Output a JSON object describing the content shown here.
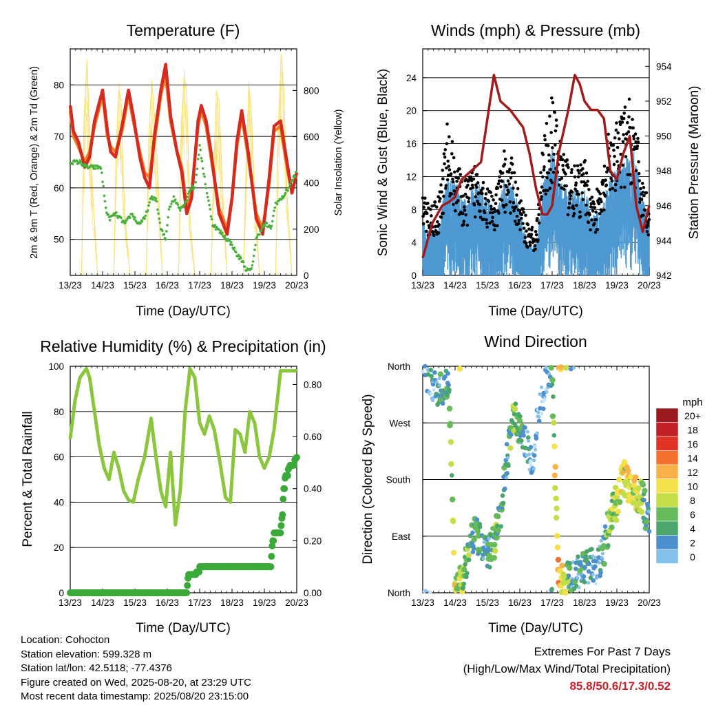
{
  "panels": {
    "temperature": {
      "title": "Temperature (F)",
      "xlabel": "Time (Day/UTC)",
      "ylabel_left": "2m & 9m T (Red, Orange) & 2m Td (Green)",
      "ylabel_right": "Solar Insolation (Yellow)"
    },
    "winds": {
      "title": "Winds (mph) & Pressure (mb)",
      "xlabel": "Time (Day/UTC)",
      "ylabel_left": "Sonic Wind & Gust (Blue, Black)",
      "ylabel_right": "Station Pressure (Maroon)"
    },
    "humidity": {
      "title": "Relative Humidity (%) & Precipitation (in)",
      "xlabel": "Time (Day/UTC)",
      "ylabel_left": "Percent & Total Rainfall",
      "ylabel_right": ""
    },
    "direction": {
      "title": "Wind Direction",
      "xlabel": "Time (Day/UTC)",
      "ylabel_left": "Direction (Colored By Speed)",
      "legend_title": "mph",
      "legend_labels": [
        "20+",
        "18",
        "16",
        "14",
        "12",
        "10",
        "8",
        "6",
        "4",
        "2",
        "0"
      ]
    }
  },
  "info": {
    "location": "Location: Cohocton",
    "elevation": "Station elevation: 599.328 m",
    "latlon": "Station lat/lon: 42.5118; -77.4376",
    "created": "Figure created on Wed, 2025-08-20, at 23:29 UTC",
    "recent": "Most recent data timestamp: 2025/08/20 23:15:00"
  },
  "extremes": {
    "heading": "Extremes For Past 7 Days",
    "subheading": "(High/Low/Max Wind/Total Precipitation)",
    "values": "85.8/50.6/17.3/0.52"
  },
  "colors": {
    "temp_2m": "#d42a20",
    "temp_9m": "#f07e26",
    "dewpoint": "#4aaf3c",
    "solar": "#f7e27a",
    "wind": "#4f99d2",
    "gust": "#000000",
    "pressure": "#a31a1a",
    "rh": "#8cc63f",
    "precip": "#3aa93a",
    "speed_scale": [
      "#c4e6f7",
      "#86c1ea",
      "#4d8fcc",
      "#4aa66a",
      "#66ba5a",
      "#c4de4a",
      "#f4e04a",
      "#f8b248",
      "#f2702f",
      "#df3425",
      "#c12027",
      "#9a1a1f"
    ]
  },
  "chart_data": [
    {
      "type": "line",
      "title": "Temperature (F)",
      "xlabel": "Time (Day/UTC)",
      "ylabel": "2m & 9m T (Red, Orange) & 2m Td (Green)",
      "y2label": "Solar Insolation (Yellow)",
      "x_ticks": [
        "13/23",
        "14/23",
        "15/23",
        "16/23",
        "17/23",
        "18/23",
        "19/23",
        "20/23"
      ],
      "xlim": [
        0,
        7
      ],
      "ylim": [
        43,
        87
      ],
      "y_ticks": [
        50,
        60,
        70,
        80
      ],
      "y2lim": [
        0,
        980
      ],
      "y2_ticks": [
        0,
        200,
        400,
        600,
        800
      ],
      "series": [
        {
          "name": "2m T",
          "axis": "left",
          "x": [
            0,
            0.1,
            0.25,
            0.45,
            0.6,
            0.75,
            1.0,
            1.15,
            1.25,
            1.4,
            1.6,
            1.8,
            1.95,
            2.15,
            2.3,
            2.45,
            2.6,
            2.8,
            2.95,
            3.1,
            3.3,
            3.45,
            3.6,
            3.75,
            3.95,
            4.05,
            4.2,
            4.35,
            4.6,
            4.85,
            5.0,
            5.15,
            5.3,
            5.5,
            5.75,
            5.95,
            6.15,
            6.3,
            6.5,
            6.7,
            6.85,
            7.0
          ],
          "y": [
            76,
            71,
            69,
            64,
            66,
            73,
            79,
            71,
            67,
            66,
            72,
            79,
            74,
            66,
            62,
            60,
            70,
            79,
            84,
            74,
            67,
            63,
            55,
            58,
            73,
            76,
            73,
            67,
            55,
            51,
            58,
            69,
            75,
            67,
            54,
            51,
            62,
            72,
            73,
            65,
            59,
            63
          ]
        },
        {
          "name": "9m T",
          "axis": "left",
          "x": [
            0,
            0.1,
            0.25,
            0.45,
            0.6,
            0.75,
            1.0,
            1.15,
            1.25,
            1.4,
            1.6,
            1.8,
            1.95,
            2.15,
            2.3,
            2.45,
            2.6,
            2.8,
            2.95,
            3.1,
            3.3,
            3.45,
            3.6,
            3.75,
            3.95,
            4.05,
            4.2,
            4.35,
            4.6,
            4.85,
            5.0,
            5.15,
            5.3,
            5.5,
            5.75,
            5.95,
            6.15,
            6.3,
            6.5,
            6.7,
            6.85,
            7.0
          ],
          "y": [
            75,
            70,
            68,
            65,
            67,
            72,
            78,
            70,
            68,
            67,
            71,
            78,
            73,
            67,
            63,
            62,
            69,
            78,
            82,
            73,
            67,
            64,
            56,
            59,
            72,
            75,
            72,
            66,
            56,
            52,
            58,
            68,
            74,
            66,
            55,
            52,
            61,
            71,
            72,
            64,
            59,
            63
          ]
        },
        {
          "name": "2m Td",
          "axis": "left",
          "x": [
            0,
            0.3,
            0.5,
            0.65,
            0.95,
            1.1,
            1.2,
            1.4,
            1.7,
            1.9,
            2.1,
            2.3,
            2.5,
            2.65,
            2.8,
            2.95,
            3.05,
            3.2,
            3.4,
            3.55,
            3.65,
            3.75,
            3.85,
            4.0,
            4.2,
            4.4,
            4.7,
            4.85,
            5.0,
            5.15,
            5.3,
            5.45,
            5.6,
            5.75,
            5.9,
            6.05,
            6.2,
            6.35,
            6.55,
            6.75,
            6.9,
            7.0
          ],
          "y": [
            65,
            65,
            64,
            64,
            64,
            56,
            54,
            55,
            53,
            55,
            53,
            54,
            58,
            58,
            52,
            50,
            56,
            58,
            56,
            57,
            59,
            60,
            60,
            68,
            60,
            53,
            51,
            50,
            49,
            47,
            46,
            44,
            44,
            50,
            52,
            53,
            52,
            57,
            58,
            60,
            62,
            63
          ]
        },
        {
          "name": "Solar",
          "axis": "right",
          "x": [
            0,
            0.35,
            0.43,
            0.52,
            0.6,
            0.7,
            0.85,
            1.35,
            1.42,
            1.5,
            1.57,
            1.67,
            1.85,
            2.35,
            2.43,
            2.52,
            2.6,
            2.7,
            2.85,
            3.35,
            3.43,
            3.52,
            3.6,
            3.7,
            3.85,
            4.35,
            4.43,
            4.52,
            4.6,
            4.7,
            4.85,
            5.35,
            5.43,
            5.52,
            5.6,
            5.7,
            5.85,
            6.35,
            6.42,
            6.52,
            6.6,
            6.7,
            6.85,
            7.0
          ],
          "y": [
            0,
            0,
            700,
            930,
            620,
            350,
            0,
            0,
            550,
            800,
            760,
            300,
            0,
            0,
            600,
            840,
            700,
            450,
            0,
            0,
            650,
            860,
            800,
            250,
            0,
            0,
            450,
            800,
            750,
            400,
            0,
            0,
            450,
            820,
            700,
            350,
            0,
            0,
            600,
            960,
            800,
            350,
            0,
            0
          ]
        }
      ]
    },
    {
      "type": "scatter",
      "title": "Winds (mph) & Pressure (mb)",
      "xlabel": "Time (Day/UTC)",
      "ylabel": "Sonic Wind & Gust (Blue, Black)",
      "y2label": "Station Pressure (Maroon)",
      "x_ticks": [
        "13/23",
        "14/23",
        "15/23",
        "16/23",
        "17/23",
        "18/23",
        "19/23",
        "20/23"
      ],
      "xlim": [
        0,
        7
      ],
      "ylim": [
        0,
        27.5
      ],
      "y_ticks": [
        0,
        4,
        8,
        12,
        16,
        20,
        24
      ],
      "y2lim": [
        942,
        955
      ],
      "y2_ticks": [
        942,
        944,
        946,
        948,
        950,
        952,
        954
      ],
      "series": [
        {
          "name": "Gust envelope",
          "axis": "left",
          "x": [
            0,
            0.25,
            0.5,
            0.75,
            1.0,
            1.25,
            1.5,
            1.75,
            2.0,
            2.25,
            2.5,
            2.75,
            3.0,
            3.25,
            3.5,
            3.75,
            4.0,
            4.25,
            4.5,
            4.75,
            5.0,
            5.25,
            5.5,
            5.75,
            6.0,
            6.25,
            6.5,
            6.75,
            7.0
          ],
          "y": [
            9,
            8,
            9,
            17,
            14,
            10,
            12,
            13,
            10,
            9,
            14,
            13,
            9,
            6,
            5,
            16,
            20,
            16,
            13,
            12,
            13,
            9,
            10,
            16,
            17,
            19,
            20,
            12,
            8
          ]
        },
        {
          "name": "Wind envelope",
          "axis": "left",
          "x": [
            0,
            0.25,
            0.5,
            0.75,
            1.0,
            1.25,
            1.5,
            1.75,
            2.0,
            2.25,
            2.5,
            2.75,
            3.0,
            3.25,
            3.5,
            3.75,
            4.0,
            4.25,
            4.5,
            4.75,
            5.0,
            5.25,
            5.5,
            5.75,
            6.0,
            6.25,
            6.5,
            6.75,
            7.0
          ],
          "y": [
            5,
            4,
            5,
            9,
            9,
            7,
            8,
            9,
            7,
            6,
            9,
            9,
            6,
            3,
            3,
            9,
            12,
            9,
            8,
            8,
            8,
            6,
            6,
            9,
            10,
            11,
            12,
            8,
            5
          ]
        },
        {
          "name": "Station Pressure",
          "axis": "right",
          "x": [
            0,
            0.3,
            0.6,
            0.8,
            1.0,
            1.2,
            1.5,
            1.8,
            2.0,
            2.2,
            2.4,
            2.7,
            2.9,
            3.1,
            3.3,
            3.5,
            3.7,
            3.85,
            4.0,
            4.2,
            4.5,
            4.7,
            4.85,
            5.0,
            5.2,
            5.4,
            5.6,
            5.8,
            6.0,
            6.2,
            6.4,
            6.6,
            6.8,
            7.0
          ],
          "y": [
            943,
            945,
            946,
            946.2,
            946.5,
            947.5,
            948,
            948.5,
            951,
            953.5,
            952,
            951.5,
            951,
            950.5,
            949,
            947,
            945.5,
            945.5,
            946,
            949,
            951.5,
            953.5,
            953,
            952,
            951.5,
            951.5,
            951,
            948,
            947.5,
            949,
            950,
            946,
            944.5,
            946
          ]
        }
      ]
    },
    {
      "type": "line",
      "title": "Relative Humidity (%) & Precipitation (in)",
      "xlabel": "Time (Day/UTC)",
      "ylabel": "Percent & Total Rainfall",
      "x_ticks": [
        "13/23",
        "14/23",
        "15/23",
        "16/23",
        "17/23",
        "18/23",
        "19/23",
        "20/23"
      ],
      "xlim": [
        0,
        7
      ],
      "ylim": [
        0,
        100
      ],
      "y_ticks": [
        0,
        20,
        40,
        60,
        80,
        100
      ],
      "y2lim": [
        0,
        0.87
      ],
      "y2_ticks": [
        0.0,
        0.2,
        0.4,
        0.6,
        0.8
      ],
      "y2_tick_labels": [
        "0.00",
        "0.20",
        "0.40",
        "0.60",
        "0.80"
      ],
      "series": [
        {
          "name": "RH",
          "axis": "left",
          "x": [
            0,
            0.15,
            0.3,
            0.5,
            0.6,
            0.75,
            0.9,
            1.05,
            1.2,
            1.35,
            1.5,
            1.65,
            1.8,
            1.95,
            2.1,
            2.3,
            2.5,
            2.65,
            2.8,
            2.95,
            3.1,
            3.25,
            3.4,
            3.55,
            3.7,
            3.85,
            4.0,
            4.15,
            4.3,
            4.45,
            4.6,
            4.8,
            4.95,
            5.1,
            5.25,
            5.4,
            5.55,
            5.7,
            5.85,
            6.0,
            6.15,
            6.3,
            6.5,
            6.7,
            6.9,
            7.0
          ],
          "y": [
            68,
            85,
            95,
            99,
            95,
            80,
            65,
            55,
            50,
            62,
            55,
            45,
            41,
            40,
            50,
            60,
            77,
            60,
            45,
            38,
            62,
            30,
            45,
            80,
            99,
            95,
            75,
            70,
            78,
            72,
            60,
            42,
            40,
            72,
            70,
            62,
            80,
            75,
            60,
            55,
            60,
            72,
            98,
            98,
            98,
            98
          ]
        },
        {
          "name": "Total Rainfall",
          "axis": "right",
          "x": [
            0,
            3.6,
            3.65,
            3.75,
            3.9,
            4.0,
            4.2,
            4.5,
            5.0,
            5.5,
            6.0,
            6.2,
            6.25,
            6.3,
            6.5,
            6.55,
            6.6,
            6.65,
            6.8,
            7.0
          ],
          "y": [
            0.0,
            0.0,
            0.07,
            0.07,
            0.08,
            0.1,
            0.1,
            0.1,
            0.1,
            0.1,
            0.1,
            0.1,
            0.2,
            0.23,
            0.23,
            0.3,
            0.4,
            0.45,
            0.49,
            0.52
          ]
        }
      ]
    },
    {
      "type": "scatter",
      "title": "Wind Direction",
      "xlabel": "Time (Day/UTC)",
      "ylabel": "Direction (Colored By Speed)",
      "x_ticks": [
        "13/23",
        "14/23",
        "15/23",
        "16/23",
        "17/23",
        "18/23",
        "19/23",
        "20/23"
      ],
      "y_ticks": [
        "North",
        "East",
        "South",
        "West",
        "North"
      ],
      "xlim": [
        0,
        7
      ],
      "ylim": [
        0,
        360
      ],
      "legend_title": "mph",
      "legend_labels": [
        "20+",
        "18",
        "16",
        "14",
        "12",
        "10",
        "8",
        "6",
        "4",
        "2",
        "0"
      ],
      "legend_position": "right",
      "series": [
        {
          "name": "Direction track",
          "x": [
            0.0,
            0.2,
            0.4,
            0.6,
            0.8,
            1.0,
            1.2,
            1.4,
            1.6,
            1.8,
            2.0,
            2.2,
            2.4,
            2.6,
            2.8,
            3.0,
            3.2,
            3.4,
            3.6,
            3.8,
            4.0,
            4.2,
            4.4,
            4.6,
            4.8,
            5.0,
            5.2,
            5.4,
            5.6,
            5.8,
            6.0,
            6.2,
            6.4,
            6.6,
            6.8,
            7.0
          ],
          "y": [
            355,
            340,
            320,
            320,
            340,
            5,
            20,
            60,
            100,
            80,
            60,
            80,
            120,
            210,
            285,
            260,
            240,
            200,
            300,
            330,
            340,
            10,
            25,
            20,
            30,
            40,
            45,
            40,
            70,
            120,
            145,
            185,
            165,
            160,
            150,
            105
          ]
        },
        {
          "name": "Speed along track",
          "x": [
            0.0,
            0.2,
            0.4,
            0.6,
            0.8,
            1.0,
            1.2,
            1.4,
            1.6,
            1.8,
            2.0,
            2.2,
            2.4,
            2.6,
            2.8,
            3.0,
            3.2,
            3.4,
            3.6,
            3.8,
            4.0,
            4.2,
            4.4,
            4.6,
            4.8,
            5.0,
            5.2,
            5.4,
            5.6,
            5.8,
            6.0,
            6.2,
            6.4,
            6.6,
            6.8,
            7.0
          ],
          "y": [
            3,
            4,
            5,
            6,
            8,
            12,
            11,
            8,
            7,
            6,
            6,
            8,
            7,
            5,
            9,
            7,
            4,
            3,
            3,
            2,
            8,
            16,
            10,
            6,
            5,
            6,
            5,
            4,
            6,
            9,
            11,
            12,
            13,
            12,
            8,
            5
          ]
        }
      ]
    }
  ]
}
